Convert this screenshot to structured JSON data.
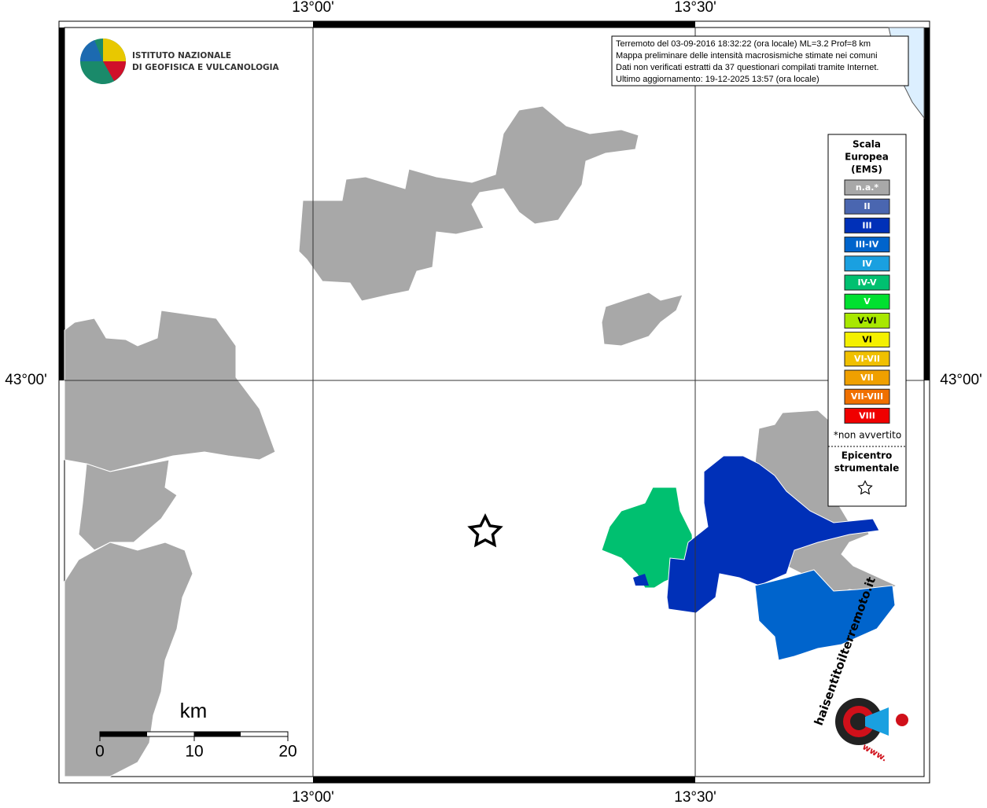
{
  "header": {
    "institute": [
      "ISTITUTO NAZIONALE",
      "DI GEOFISICA E VULCANOLOGIA"
    ]
  },
  "coordinates": {
    "lon_labels": [
      "13°00'",
      "13°30'"
    ],
    "lat_labels": [
      "43°00'"
    ]
  },
  "info": [
    "Terremoto del 03-09-2016 18:32:22 (ora locale) ML=3.2 Prof=8 km",
    "Mappa preliminare delle intensità macrosismiche stimate nei comuni",
    "Dati non verificati estratti da 37 questionari compilati tramite Internet.",
    "Ultimo aggiornamento: 19-12-2025 13:57 (ora locale)"
  ],
  "legend": {
    "title": [
      "Scala",
      "Europea",
      "(EMS)"
    ],
    "items": [
      {
        "label": "n.a.*",
        "color": "#a8a8a8"
      },
      {
        "label": "II",
        "color": "#4a66b0"
      },
      {
        "label": "III",
        "color": "#0030b8"
      },
      {
        "label": "III-IV",
        "color": "#0064cc"
      },
      {
        "label": "IV",
        "color": "#1aa0e0"
      },
      {
        "label": "IV-V",
        "color": "#00c070"
      },
      {
        "label": "V",
        "color": "#00e030"
      },
      {
        "label": "V-VI",
        "color": "#a8e800"
      },
      {
        "label": "VI",
        "color": "#f4f000"
      },
      {
        "label": "VI-VII",
        "color": "#f0c000"
      },
      {
        "label": "VII",
        "color": "#f0a000"
      },
      {
        "label": "VII-VIII",
        "color": "#f07000"
      },
      {
        "label": "VIII",
        "color": "#f00000"
      }
    ],
    "note": "*non avvertito",
    "epicenter": [
      "Epicentro",
      "strumentale"
    ]
  },
  "scale": {
    "unit": "km",
    "labels": [
      "0",
      "10",
      "20"
    ]
  },
  "logo": {
    "text": "haisentitoilterremoto.it",
    "www": "www."
  }
}
